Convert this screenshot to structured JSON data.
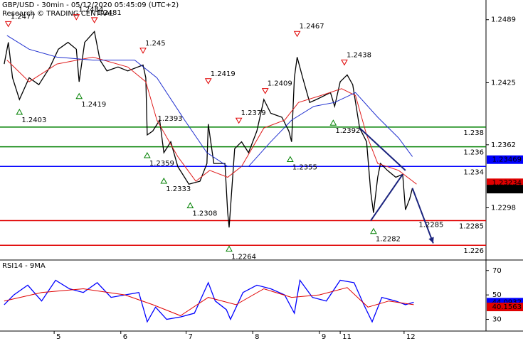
{
  "chart_data": {
    "type": "line",
    "title": "GBP/USD - 30min - 05/12/2020 05:45:09 (UTC+2)",
    "subtitle": "Research © TRADING CENTRAL",
    "xlim": [
      0,
      350
    ],
    "xticks": [
      {
        "value": 39,
        "label": "5"
      },
      {
        "value": 87,
        "label": "6"
      },
      {
        "value": 134,
        "label": "7"
      },
      {
        "value": 182,
        "label": "8"
      },
      {
        "value": 230,
        "label": "9"
      },
      {
        "value": 245,
        "label": "11"
      },
      {
        "value": 291,
        "label": "12"
      }
    ],
    "ylim": [
      1.2245,
      1.2509
    ],
    "yticks": [
      1.2298,
      1.2362,
      1.2425,
      1.2489
    ],
    "series": [
      {
        "name": "price",
        "color": "#000000",
        "x": [
          3,
          6,
          9,
          14,
          21,
          28,
          36,
          42,
          49,
          55,
          57,
          61,
          68,
          72,
          77,
          85,
          92,
          103,
          105,
          106,
          110,
          115,
          118,
          123,
          128,
          136,
          144,
          149,
          150,
          154,
          162,
          164,
          165,
          169,
          174,
          179,
          185,
          190,
          195,
          203,
          208,
          210,
          212,
          214,
          218,
          223,
          228,
          238,
          241,
          245,
          250,
          254,
          259,
          264,
          267,
          269,
          272,
          274,
          279,
          285,
          290,
          292,
          295,
          297
        ],
        "values": [
          1.2444,
          1.2466,
          1.243,
          1.2408,
          1.243,
          1.2423,
          1.2441,
          1.2459,
          1.2466,
          1.2459,
          1.2426,
          1.2466,
          1.2477,
          1.2448,
          1.2437,
          1.2441,
          1.2437,
          1.2443,
          1.243,
          1.2372,
          1.2376,
          1.2387,
          1.2354,
          1.2365,
          1.234,
          1.2322,
          1.2325,
          1.2343,
          1.2383,
          1.2343,
          1.2343,
          1.2293,
          1.2278,
          1.2358,
          1.2365,
          1.2354,
          1.2376,
          1.2408,
          1.2394,
          1.239,
          1.2376,
          1.2365,
          1.243,
          1.2451,
          1.243,
          1.2405,
          1.2408,
          1.2415,
          1.2401,
          1.2426,
          1.2433,
          1.2423,
          1.2379,
          1.2365,
          1.2314,
          1.2293,
          1.2329,
          1.2343,
          1.2336,
          1.2329,
          1.2332,
          1.2296,
          1.2307,
          1.2318
        ]
      },
      {
        "name": "ma-fast",
        "color": "#e02020",
        "x": [
          5,
          21,
          41,
          67,
          92,
          105,
          113,
          128,
          141,
          151,
          164,
          174,
          190,
          205,
          215,
          231,
          246,
          256,
          264,
          272,
          287,
          300
        ],
        "values": [
          1.2448,
          1.2426,
          1.2444,
          1.2451,
          1.2441,
          1.2426,
          1.2387,
          1.235,
          1.2325,
          1.2336,
          1.2329,
          1.234,
          1.2379,
          1.2387,
          1.2405,
          1.2412,
          1.2419,
          1.2412,
          1.2372,
          1.2343,
          1.2336,
          1.2322
        ]
      },
      {
        "name": "ma-slow",
        "color": "#2030d0",
        "x": [
          5,
          21,
          41,
          67,
          97,
          113,
          133,
          149,
          164,
          179,
          195,
          210,
          226,
          241,
          256,
          272,
          287,
          297
        ],
        "values": [
          1.2473,
          1.2459,
          1.2451,
          1.2448,
          1.2448,
          1.243,
          1.2387,
          1.2354,
          1.234,
          1.234,
          1.2365,
          1.2387,
          1.2401,
          1.2405,
          1.2415,
          1.239,
          1.2369,
          1.235
        ]
      }
    ],
    "levels": [
      {
        "value": 1.238,
        "color": "#008000"
      },
      {
        "value": 1.236,
        "color": "#008000"
      },
      {
        "value": 1.234,
        "color": "#0000ff"
      },
      {
        "value": 1.2285,
        "color": "#e00000"
      },
      {
        "value": 1.226,
        "color": "#e00000"
      }
    ],
    "price_boxes": [
      {
        "value": 1.23469,
        "color": "#0000ff"
      },
      {
        "value": 1.23234,
        "color": "#e00000"
      },
      {
        "value": 1.2317,
        "color": "#000000"
      }
    ],
    "annotations": [
      {
        "value": 1.2477,
        "x": 6,
        "marker": "down"
      },
      {
        "value": 1.2484,
        "x": 55,
        "marker": "down"
      },
      {
        "value": 1.2481,
        "x": 68,
        "marker": "down"
      },
      {
        "value": 1.245,
        "x": 103,
        "marker": "down"
      },
      {
        "value": 1.2419,
        "x": 150,
        "marker": "down"
      },
      {
        "value": 1.2379,
        "x": 172,
        "marker": "down"
      },
      {
        "value": 1.2409,
        "x": 191,
        "marker": "down"
      },
      {
        "value": 1.2467,
        "x": 214,
        "marker": "down"
      },
      {
        "value": 1.2438,
        "x": 248,
        "marker": "down"
      },
      {
        "value": 1.2403,
        "x": 14,
        "marker": "up"
      },
      {
        "value": 1.2419,
        "x": 57,
        "marker": "up"
      },
      {
        "value": 1.2393,
        "x": 112
      },
      {
        "value": 1.2359,
        "x": 106,
        "marker": "up"
      },
      {
        "value": 1.2333,
        "x": 118,
        "marker": "up"
      },
      {
        "value": 1.2308,
        "x": 137,
        "marker": "up"
      },
      {
        "value": 1.2264,
        "x": 165,
        "marker": "up"
      },
      {
        "value": 1.2355,
        "x": 209,
        "marker": "up"
      },
      {
        "value": 1.2392,
        "x": 240,
        "marker": "up"
      },
      {
        "value": 1.2282,
        "x": 269,
        "marker": "up"
      },
      {
        "value": 1.2285,
        "x": 300
      }
    ],
    "trendlines": [
      {
        "x": [
          259,
          292
        ],
        "values": [
          1.2379,
          1.2336
        ]
      },
      {
        "x": [
          267,
          290
        ],
        "values": [
          1.2285,
          1.2332
        ]
      },
      {
        "x": [
          297,
          312
        ],
        "values": [
          1.2318,
          1.2262
        ],
        "arrow": true
      }
    ],
    "rsi": {
      "title": "RSI14 - 9MA",
      "ylim": [
        21,
        78
      ],
      "yticks": [
        30,
        50,
        70
      ],
      "series": [
        {
          "name": "rsi",
          "color": "#0000ff",
          "x": [
            3,
            10,
            20,
            30,
            40,
            50,
            60,
            70,
            80,
            90,
            100,
            106,
            112,
            120,
            130,
            140,
            150,
            155,
            163,
            166,
            175,
            185,
            195,
            205,
            212,
            216,
            225,
            235,
            245,
            255,
            262,
            268,
            275,
            285,
            292,
            298
          ],
          "values": [
            42,
            50,
            58,
            45,
            62,
            55,
            52,
            60,
            48,
            50,
            52,
            28,
            40,
            30,
            32,
            35,
            60,
            45,
            38,
            30,
            52,
            58,
            55,
            50,
            35,
            62,
            48,
            45,
            62,
            60,
            42,
            28,
            48,
            45,
            42,
            44
          ]
        },
        {
          "name": "rsi-ma",
          "color": "#e00000",
          "x": [
            3,
            30,
            60,
            90,
            110,
            130,
            150,
            170,
            190,
            210,
            230,
            250,
            265,
            280,
            298
          ],
          "values": [
            45,
            52,
            55,
            50,
            42,
            33,
            48,
            42,
            55,
            48,
            50,
            56,
            40,
            45,
            42
          ]
        }
      ],
      "boxes": [
        {
          "value": 44.0932,
          "color": "#0000ff"
        },
        {
          "value": 40.1563,
          "color": "#e00000"
        }
      ]
    }
  }
}
